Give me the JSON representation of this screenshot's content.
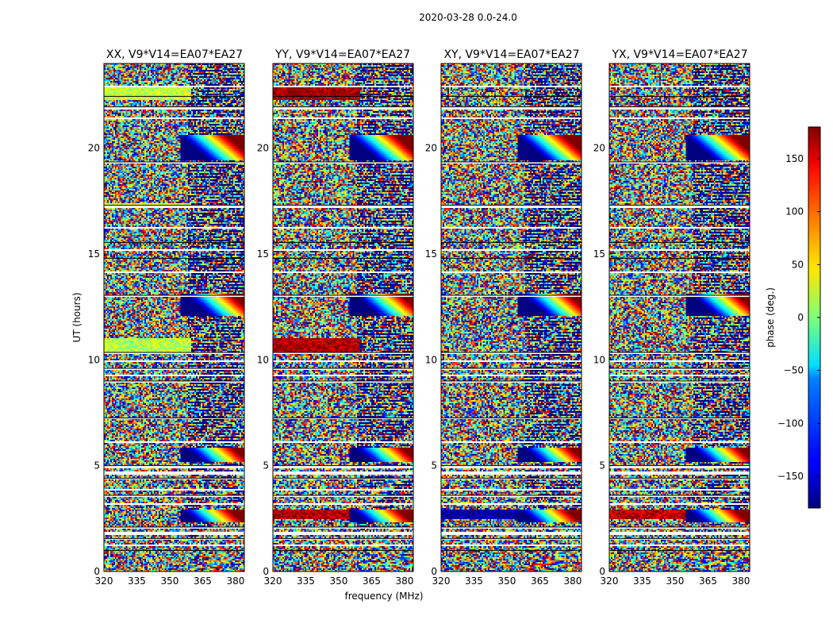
{
  "chart_data": {
    "type": "heatmap",
    "suptitle": "2020-03-28 0.0-24.0",
    "xlabel": "frequency (MHz)",
    "ylabel": "UT (hours)",
    "xlim": [
      320,
      384
    ],
    "ylim": [
      0,
      24
    ],
    "xticks": [
      320,
      335,
      350,
      365,
      380
    ],
    "yticks": [
      0,
      5,
      10,
      15,
      20
    ],
    "colorbar": {
      "label": "phase (deg.)",
      "range": [
        -180,
        180
      ],
      "ticks": [
        150,
        100,
        50,
        0,
        -50,
        -100,
        -150
      ],
      "tick_labels": [
        "150",
        "100",
        "50",
        "0",
        "−50",
        "−100",
        "−150"
      ],
      "colormap": "jet"
    },
    "flagged_hours": [
      [
        0.95,
        1.0
      ],
      [
        1.2,
        1.25
      ],
      [
        1.5,
        1.55
      ],
      [
        1.75,
        1.85
      ],
      [
        2.05,
        2.1
      ],
      [
        3.15,
        3.2
      ],
      [
        3.55,
        3.6
      ],
      [
        3.8,
        3.9
      ],
      [
        4.35,
        4.4
      ],
      [
        4.6,
        4.7
      ],
      [
        4.85,
        5.0
      ],
      [
        6.1,
        6.15
      ],
      [
        7.2,
        7.25
      ],
      [
        8.6,
        8.65
      ],
      [
        8.9,
        9.0
      ],
      [
        9.2,
        9.3
      ],
      [
        9.55,
        9.6
      ],
      [
        9.9,
        9.95
      ],
      [
        10.3,
        10.35
      ],
      [
        11.0,
        11.05
      ],
      [
        13.0,
        13.05
      ],
      [
        14.1,
        14.15
      ],
      [
        14.75,
        14.8
      ],
      [
        15.15,
        15.2
      ],
      [
        15.5,
        15.55
      ],
      [
        16.2,
        16.25
      ],
      [
        17.15,
        17.3
      ],
      [
        18.5,
        18.55
      ],
      [
        19.25,
        19.35
      ],
      [
        21.4,
        21.45
      ],
      [
        21.85,
        21.95
      ],
      [
        22.1,
        22.15
      ],
      [
        22.4,
        22.45
      ],
      [
        22.9,
        22.95
      ]
    ],
    "fringe_events": [
      {
        "hour": 2.6,
        "freq": 370,
        "width": 0.3
      },
      {
        "hour": 5.5,
        "freq": 372,
        "width": 0.35
      },
      {
        "hour": 12.6,
        "freq": 373,
        "width": 0.5
      },
      {
        "hour": 20.0,
        "freq": 372,
        "width": 0.6
      }
    ],
    "panels": [
      {
        "title": "XX, V9*V14=EA07*EA27",
        "bands": [
          {
            "start": 10.3,
            "end": 11.0,
            "phase": 20
          },
          {
            "start": 22.3,
            "end": 22.9,
            "phase": 25
          },
          {
            "start": 17.2,
            "end": 17.4,
            "phase": 30
          }
        ]
      },
      {
        "title": "YY, V9*V14=EA07*EA27",
        "bands": [
          {
            "start": 10.3,
            "end": 11.0,
            "phase": 165
          },
          {
            "start": 22.3,
            "end": 22.9,
            "phase": 170
          },
          {
            "start": 2.5,
            "end": 2.9,
            "phase": 165
          }
        ]
      },
      {
        "title": "XY, V9*V14=EA07*EA27",
        "bands": [
          {
            "start": 2.5,
            "end": 2.9,
            "phase": -170
          }
        ]
      },
      {
        "title": "YX, V9*V14=EA07*EA27",
        "bands": [
          {
            "start": 2.5,
            "end": 2.9,
            "phase": 160
          }
        ]
      }
    ]
  }
}
